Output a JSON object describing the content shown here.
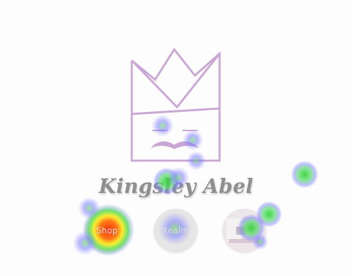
{
  "brand": {
    "name": "Kingsley Abel",
    "logo_icon": "crown-face-icon",
    "logo_color": "#c9a6d4"
  },
  "nav": [
    {
      "label": "Shop",
      "style": "dark"
    },
    {
      "label": "Realm",
      "style": "light"
    },
    {
      "label": "",
      "style": "photo"
    }
  ],
  "colors": {
    "background": "#fdfdfd",
    "brand_text": "#8f8f8f"
  }
}
